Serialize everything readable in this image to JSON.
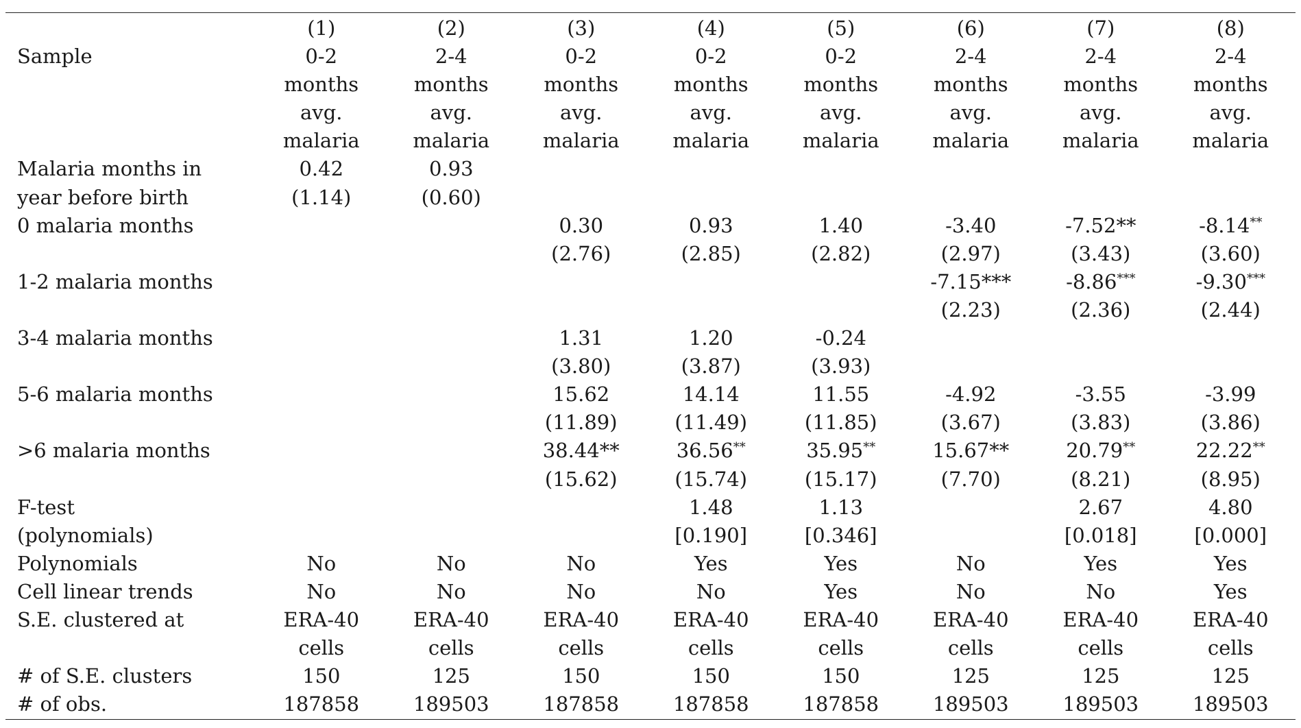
{
  "rows": [
    {
      "label": "",
      "cells": [
        "(1)",
        "(2)",
        "(3)",
        "(4)",
        "(5)",
        "(6)",
        "(7)",
        "(8)"
      ]
    },
    {
      "label": "Sample",
      "cells": [
        "0-2",
        "2-4",
        "0-2",
        "0-2",
        "0-2",
        "2-4",
        "2-4",
        "2-4"
      ]
    },
    {
      "label": "",
      "cells": [
        "months",
        "months",
        "months",
        "months",
        "months",
        "months",
        "months",
        "months"
      ]
    },
    {
      "label": "",
      "cells": [
        "avg.",
        "avg.",
        "avg.",
        "avg.",
        "avg.",
        "avg.",
        "avg.",
        "avg."
      ]
    },
    {
      "label": "",
      "cells": [
        "malaria",
        "malaria",
        "malaria",
        "malaria",
        "malaria",
        "malaria",
        "malaria",
        "malaria"
      ]
    },
    {
      "label": "Malaria months in",
      "cells": [
        "0.42",
        "0.93",
        "",
        "",
        "",
        "",
        "",
        ""
      ]
    },
    {
      "label": "year before birth",
      "cells": [
        "(1.14)",
        "(0.60)",
        "",
        "",
        "",
        "",
        "",
        ""
      ]
    },
    {
      "label": "0 malaria months",
      "cells": [
        "",
        "",
        "0.30",
        "0.93",
        "1.40",
        "-3.40",
        "-7.52**",
        "-8.14**"
      ]
    },
    {
      "label": "",
      "cells": [
        "",
        "",
        "(2.76)",
        "(2.85)",
        "(2.82)",
        "(2.97)",
        "(3.43)",
        "(3.60)"
      ]
    },
    {
      "label": "1-2 malaria months",
      "cells": [
        "",
        "",
        "",
        "",
        "",
        "-7.15***",
        "-8.86***",
        "-9.30***"
      ]
    },
    {
      "label": "",
      "cells": [
        "",
        "",
        "",
        "",
        "",
        "(2.23)",
        "(2.36)",
        "(2.44)"
      ]
    },
    {
      "label": "3-4 malaria months",
      "cells": [
        "",
        "",
        "1.31",
        "1.20",
        "-0.24",
        "",
        "",
        ""
      ]
    },
    {
      "label": "",
      "cells": [
        "",
        "",
        "(3.80)",
        "(3.87)",
        "(3.93)",
        "",
        "",
        ""
      ]
    },
    {
      "label": "5-6 malaria months",
      "cells": [
        "",
        "",
        "15.62",
        "14.14",
        "11.55",
        "-4.92",
        "-3.55",
        "-3.99"
      ]
    },
    {
      "label": "",
      "cells": [
        "",
        "",
        "(11.89)",
        "(11.49)",
        "(11.85)",
        "(3.67)",
        "(3.83)",
        "(3.86)"
      ]
    },
    {
      "label": ">6  malaria months",
      "cells": [
        "",
        "",
        "38.44**",
        "36.56**",
        "35.95**",
        "15.67**",
        "20.79**",
        "22.22**"
      ]
    },
    {
      "label": "",
      "cells": [
        "",
        "",
        "(15.62)",
        "(15.74)",
        "(15.17)",
        "(7.70)",
        "(8.21)",
        "(8.95)"
      ]
    },
    {
      "label": "F-test",
      "cells": [
        "",
        "",
        "",
        "1.48",
        "1.13",
        "",
        "2.67",
        "4.80"
      ]
    },
    {
      "label": " (polynomials)",
      "cells": [
        "",
        "",
        "",
        "[0.190]",
        "[0.346]",
        "",
        "[0.018]",
        "[0.000]"
      ]
    },
    {
      "label": "Polynomials",
      "cells": [
        "No",
        "No",
        "No",
        "Yes",
        "Yes",
        "No",
        "Yes",
        "Yes"
      ]
    },
    {
      "label": "Cell linear trends",
      "cells": [
        "No",
        "No",
        "No",
        "No",
        "Yes",
        "No",
        "No",
        "Yes"
      ]
    },
    {
      "label": "S.E. clustered at",
      "cells": [
        "ERA-40",
        "ERA-40",
        "ERA-40",
        "ERA-40",
        "ERA-40",
        "ERA-40",
        "ERA-40",
        "ERA-40"
      ]
    },
    {
      "label": "",
      "cells": [
        "cells",
        "cells",
        "cells",
        "cells",
        "cells",
        "cells",
        "cells",
        "cells"
      ]
    },
    {
      "label": "# of S.E. clusters",
      "cells": [
        "150",
        "125",
        "150",
        "150",
        "150",
        "125",
        "125",
        "125"
      ]
    },
    {
      "label": "# of obs.",
      "cells": [
        "187858",
        "189503",
        "187858",
        "187858",
        "187858",
        "189503",
        "189503",
        "189503"
      ]
    }
  ],
  "small_star_cells": [
    [
      7,
      7
    ],
    [
      9,
      6
    ],
    [
      9,
      7
    ],
    [
      15,
      3
    ],
    [
      15,
      4
    ],
    [
      15,
      6
    ],
    [
      15,
      7
    ]
  ]
}
